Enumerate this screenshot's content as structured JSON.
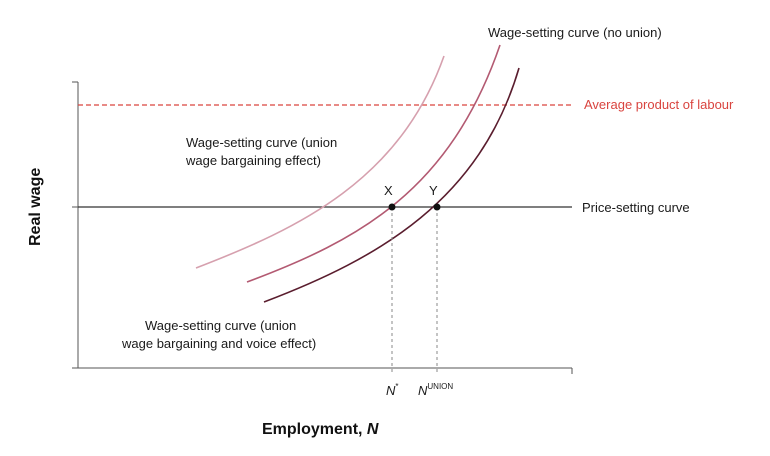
{
  "diagram": {
    "y_axis_label": "Real wage",
    "x_axis_label_prefix": "Employment, ",
    "x_axis_label_var": "N",
    "labels": {
      "ws_no_union": "Wage-setting curve (no union)",
      "apl": "Average product of labour",
      "price_setting": "Price-setting curve",
      "ws_bargaining_line1": "Wage-setting curve (union",
      "ws_bargaining_line2": "wage bargaining effect)",
      "ws_voice_line1": "Wage-setting curve (union",
      "ws_voice_line2": "wage bargaining and voice effect)"
    },
    "points": {
      "x": "X",
      "y": "Y"
    },
    "ticks": {
      "n_star": "N",
      "n_star_sup": "*",
      "n_union": "N",
      "n_union_sup": "UNION"
    },
    "colors": {
      "apl": "#d9443f",
      "ws_no_union": "#5a1d2e",
      "ws_bargaining": "#b35a72",
      "ws_voice": "#d6a0ae",
      "axis": "#555555"
    }
  }
}
